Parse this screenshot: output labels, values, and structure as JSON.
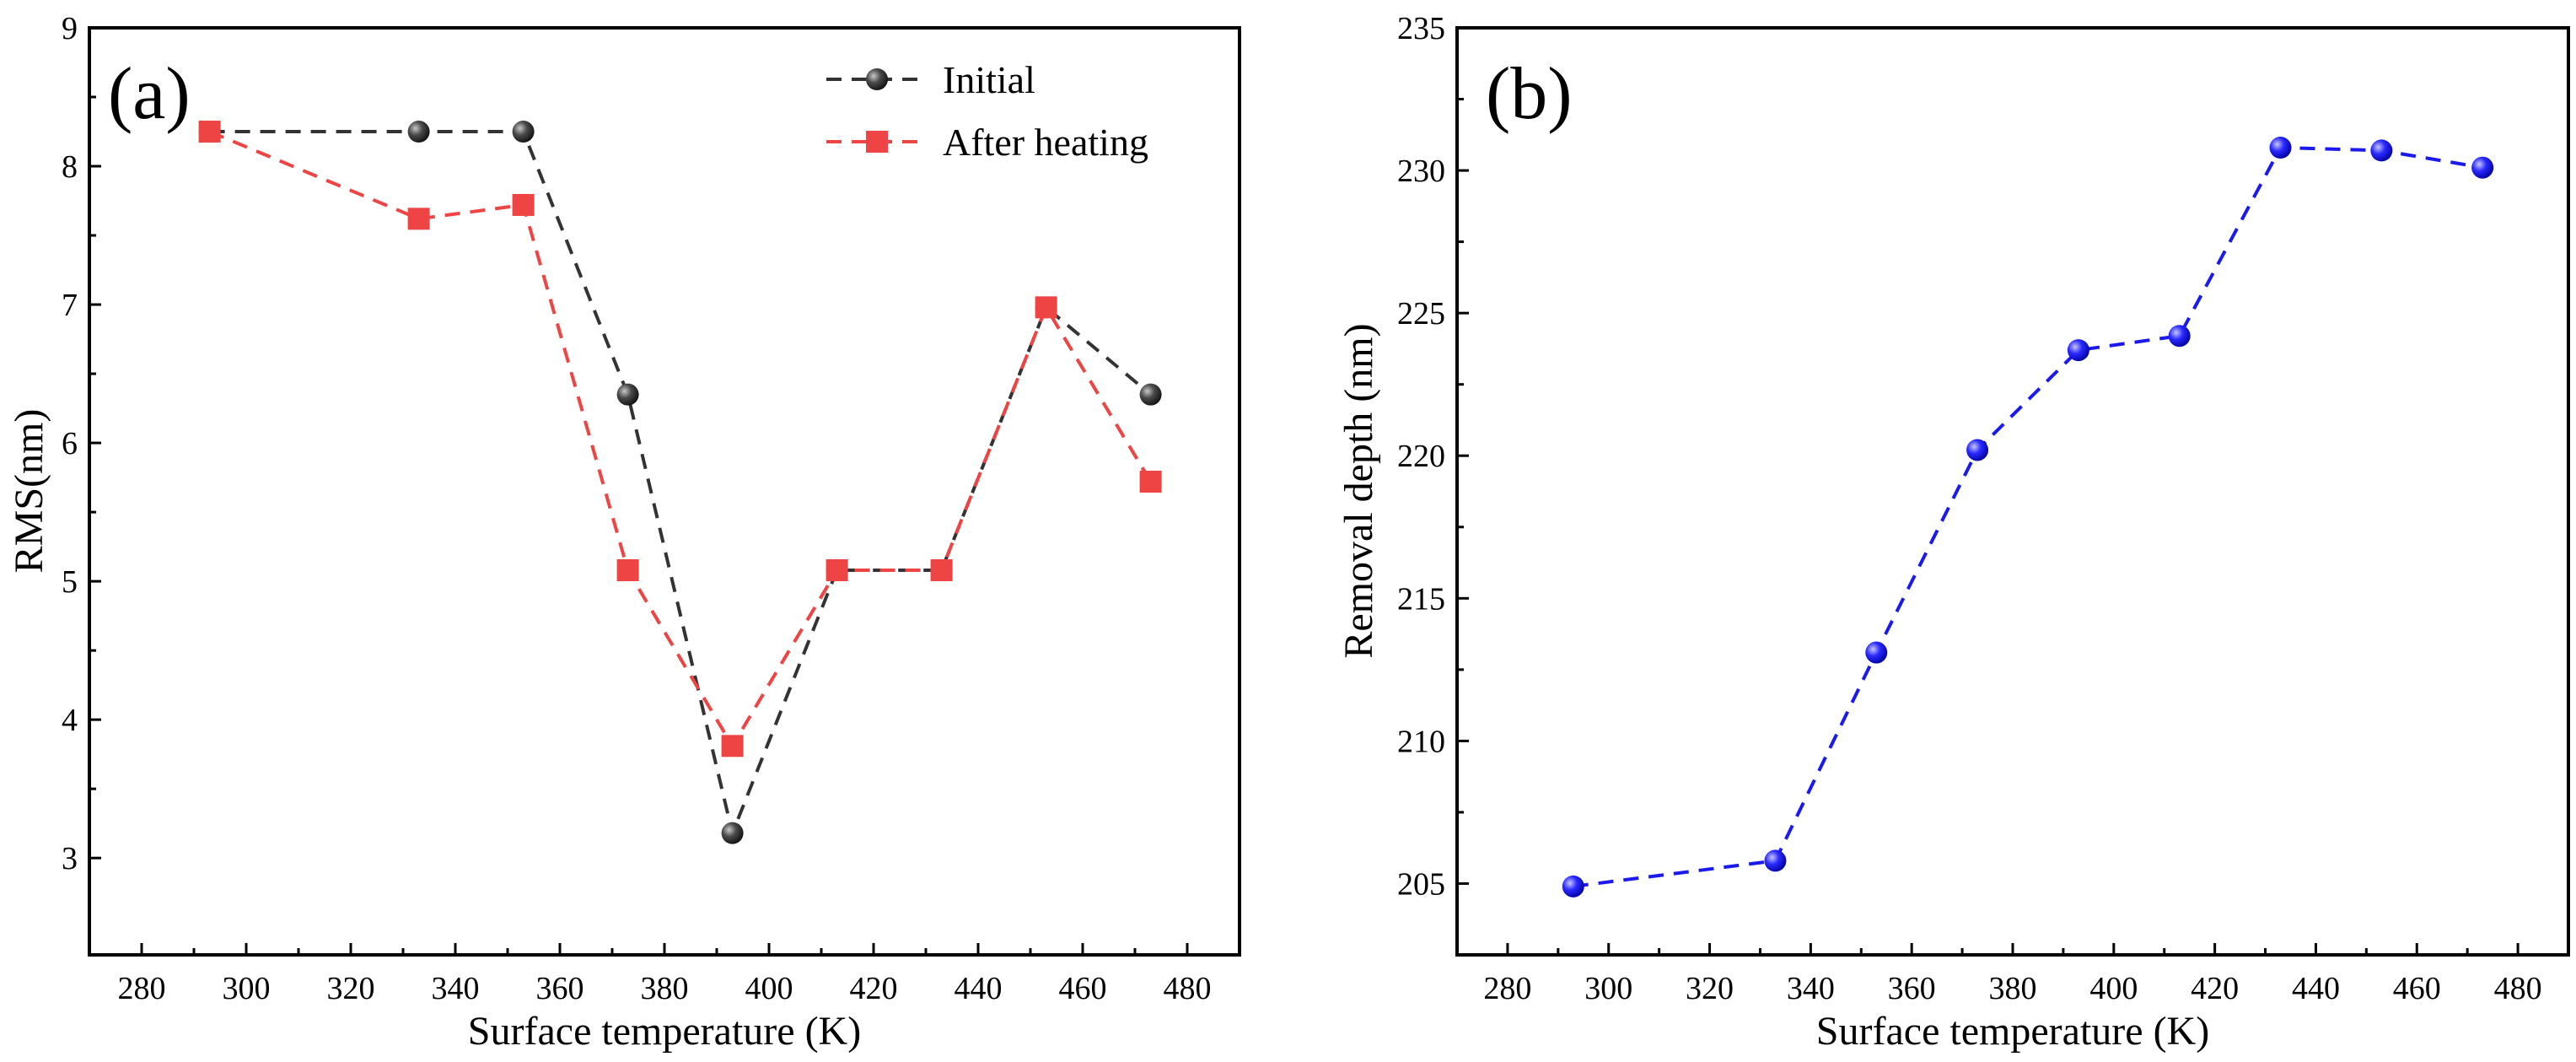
{
  "chart_data": [
    {
      "type": "line",
      "panel_label": "(a)",
      "xlabel": "Surface temperature (K)",
      "ylabel": "RMS(nm)",
      "xlim": [
        270,
        490
      ],
      "ylim": [
        2.3,
        9
      ],
      "xticks": [
        280,
        300,
        320,
        340,
        360,
        380,
        400,
        420,
        440,
        460,
        480
      ],
      "yticks": [
        3,
        4,
        5,
        6,
        7,
        8,
        9
      ],
      "legend_position": "top-right",
      "series": [
        {
          "name": "Initial",
          "color": "#333333",
          "marker": "sphere",
          "line": "dashed",
          "x": [
            293,
            333,
            353,
            373,
            393,
            413,
            433,
            453,
            473
          ],
          "y": [
            8.25,
            8.25,
            8.25,
            6.35,
            3.18,
            5.08,
            5.08,
            6.98,
            6.35
          ]
        },
        {
          "name": "After heating",
          "color": "#ee4444",
          "marker": "square",
          "line": "dashed",
          "x": [
            293,
            333,
            353,
            373,
            393,
            413,
            433,
            453,
            473
          ],
          "y": [
            8.25,
            7.62,
            7.72,
            5.08,
            3.81,
            5.08,
            5.08,
            6.98,
            5.72
          ]
        }
      ]
    },
    {
      "type": "line",
      "panel_label": "(b)",
      "xlabel": "Surface temperature (K)",
      "ylabel": "Removal depth (nm)",
      "xlim": [
        270,
        490
      ],
      "ylim": [
        202.5,
        235
      ],
      "xticks": [
        280,
        300,
        320,
        340,
        360,
        380,
        400,
        420,
        440,
        460,
        480
      ],
      "yticks": [
        205,
        210,
        215,
        220,
        225,
        230,
        235
      ],
      "series": [
        {
          "color": "#1a1aee",
          "marker": "sphere",
          "line": "dashed",
          "x": [
            293,
            333,
            353,
            373,
            393,
            413,
            433,
            453,
            473
          ],
          "y": [
            204.9,
            205.8,
            213.1,
            220.2,
            223.7,
            224.2,
            230.8,
            230.7,
            230.1
          ]
        }
      ]
    }
  ]
}
